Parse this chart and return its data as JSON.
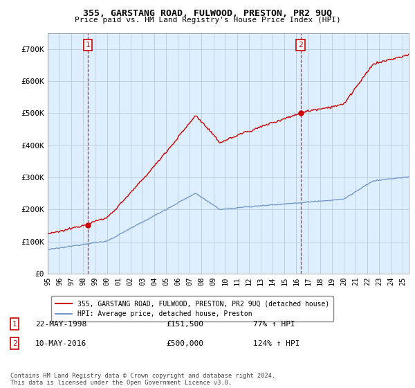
{
  "title": "355, GARSTANG ROAD, FULWOOD, PRESTON, PR2 9UQ",
  "subtitle": "Price paid vs. HM Land Registry's House Price Index (HPI)",
  "ylabel_ticks": [
    "£0",
    "£100K",
    "£200K",
    "£300K",
    "£400K",
    "£500K",
    "£600K",
    "£700K"
  ],
  "ytick_values": [
    0,
    100000,
    200000,
    300000,
    400000,
    500000,
    600000,
    700000
  ],
  "ylim": [
    0,
    750000
  ],
  "xlim_start": 1995.0,
  "xlim_end": 2025.5,
  "house_color": "#cc0000",
  "hpi_color": "#7799cc",
  "chart_bg": "#ddeeff",
  "purchase1_date": 1998.38,
  "purchase1_price": 151500,
  "purchase2_date": 2016.36,
  "purchase2_price": 500000,
  "legend_house": "355, GARSTANG ROAD, FULWOOD, PRESTON, PR2 9UQ (detached house)",
  "legend_hpi": "HPI: Average price, detached house, Preston",
  "table_row1": [
    "1",
    "22-MAY-1998",
    "£151,500",
    "77% ↑ HPI"
  ],
  "table_row2": [
    "2",
    "10-MAY-2016",
    "£500,000",
    "124% ↑ HPI"
  ],
  "footnote": "Contains HM Land Registry data © Crown copyright and database right 2024.\nThis data is licensed under the Open Government Licence v3.0.",
  "background_color": "#ffffff",
  "grid_color": "#bbccdd"
}
